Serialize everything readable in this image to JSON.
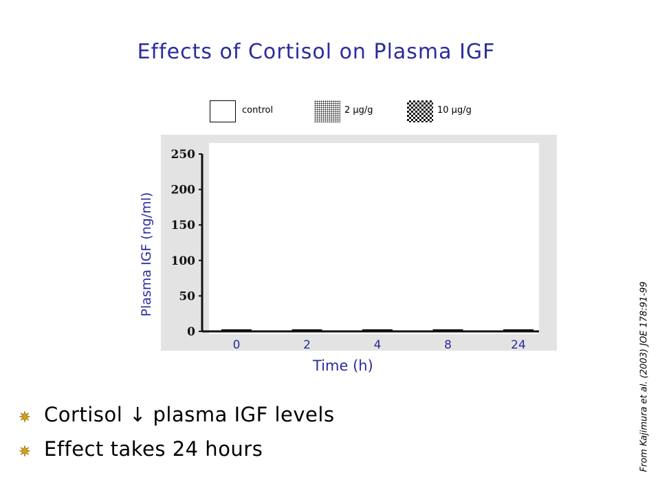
{
  "slide": {
    "title": "Effects of Cortisol on Plasma IGF",
    "citation": "From Kajimura et al. (2003) JOE 178:91-99",
    "bullets": [
      "Cortisol ↓ plasma IGF levels",
      "Effect takes 24 hours"
    ]
  },
  "legend": [
    {
      "label": "control",
      "pattern": "blank"
    },
    {
      "label": "2 μg/g",
      "pattern": "fine-dots"
    },
    {
      "label": "10 μg/g",
      "pattern": "checkerboard"
    }
  ],
  "colors": {
    "title": "#2b2b9e",
    "xtick": "#2b2b9e",
    "chart_background": "#e3e3e3",
    "bullet_icon": "#d4a017"
  },
  "chart_data": {
    "type": "bar",
    "categories": [
      "0",
      "2",
      "4",
      "8",
      "24"
    ],
    "series": [
      {
        "name": "control",
        "values": [
          null,
          null,
          null,
          null,
          null
        ]
      },
      {
        "name": "2 μg/g",
        "values": [
          null,
          null,
          null,
          null,
          null
        ]
      },
      {
        "name": "10 μg/g",
        "values": [
          null,
          null,
          null,
          null,
          null
        ]
      }
    ],
    "xlabel": "Time (h)",
    "ylabel": "Plasma IGF (ng/ml)",
    "yticks": [
      "0",
      "50",
      "100",
      "150",
      "200",
      "250"
    ],
    "ylim": [
      0,
      250
    ],
    "grid": false,
    "legend_position": "top"
  }
}
